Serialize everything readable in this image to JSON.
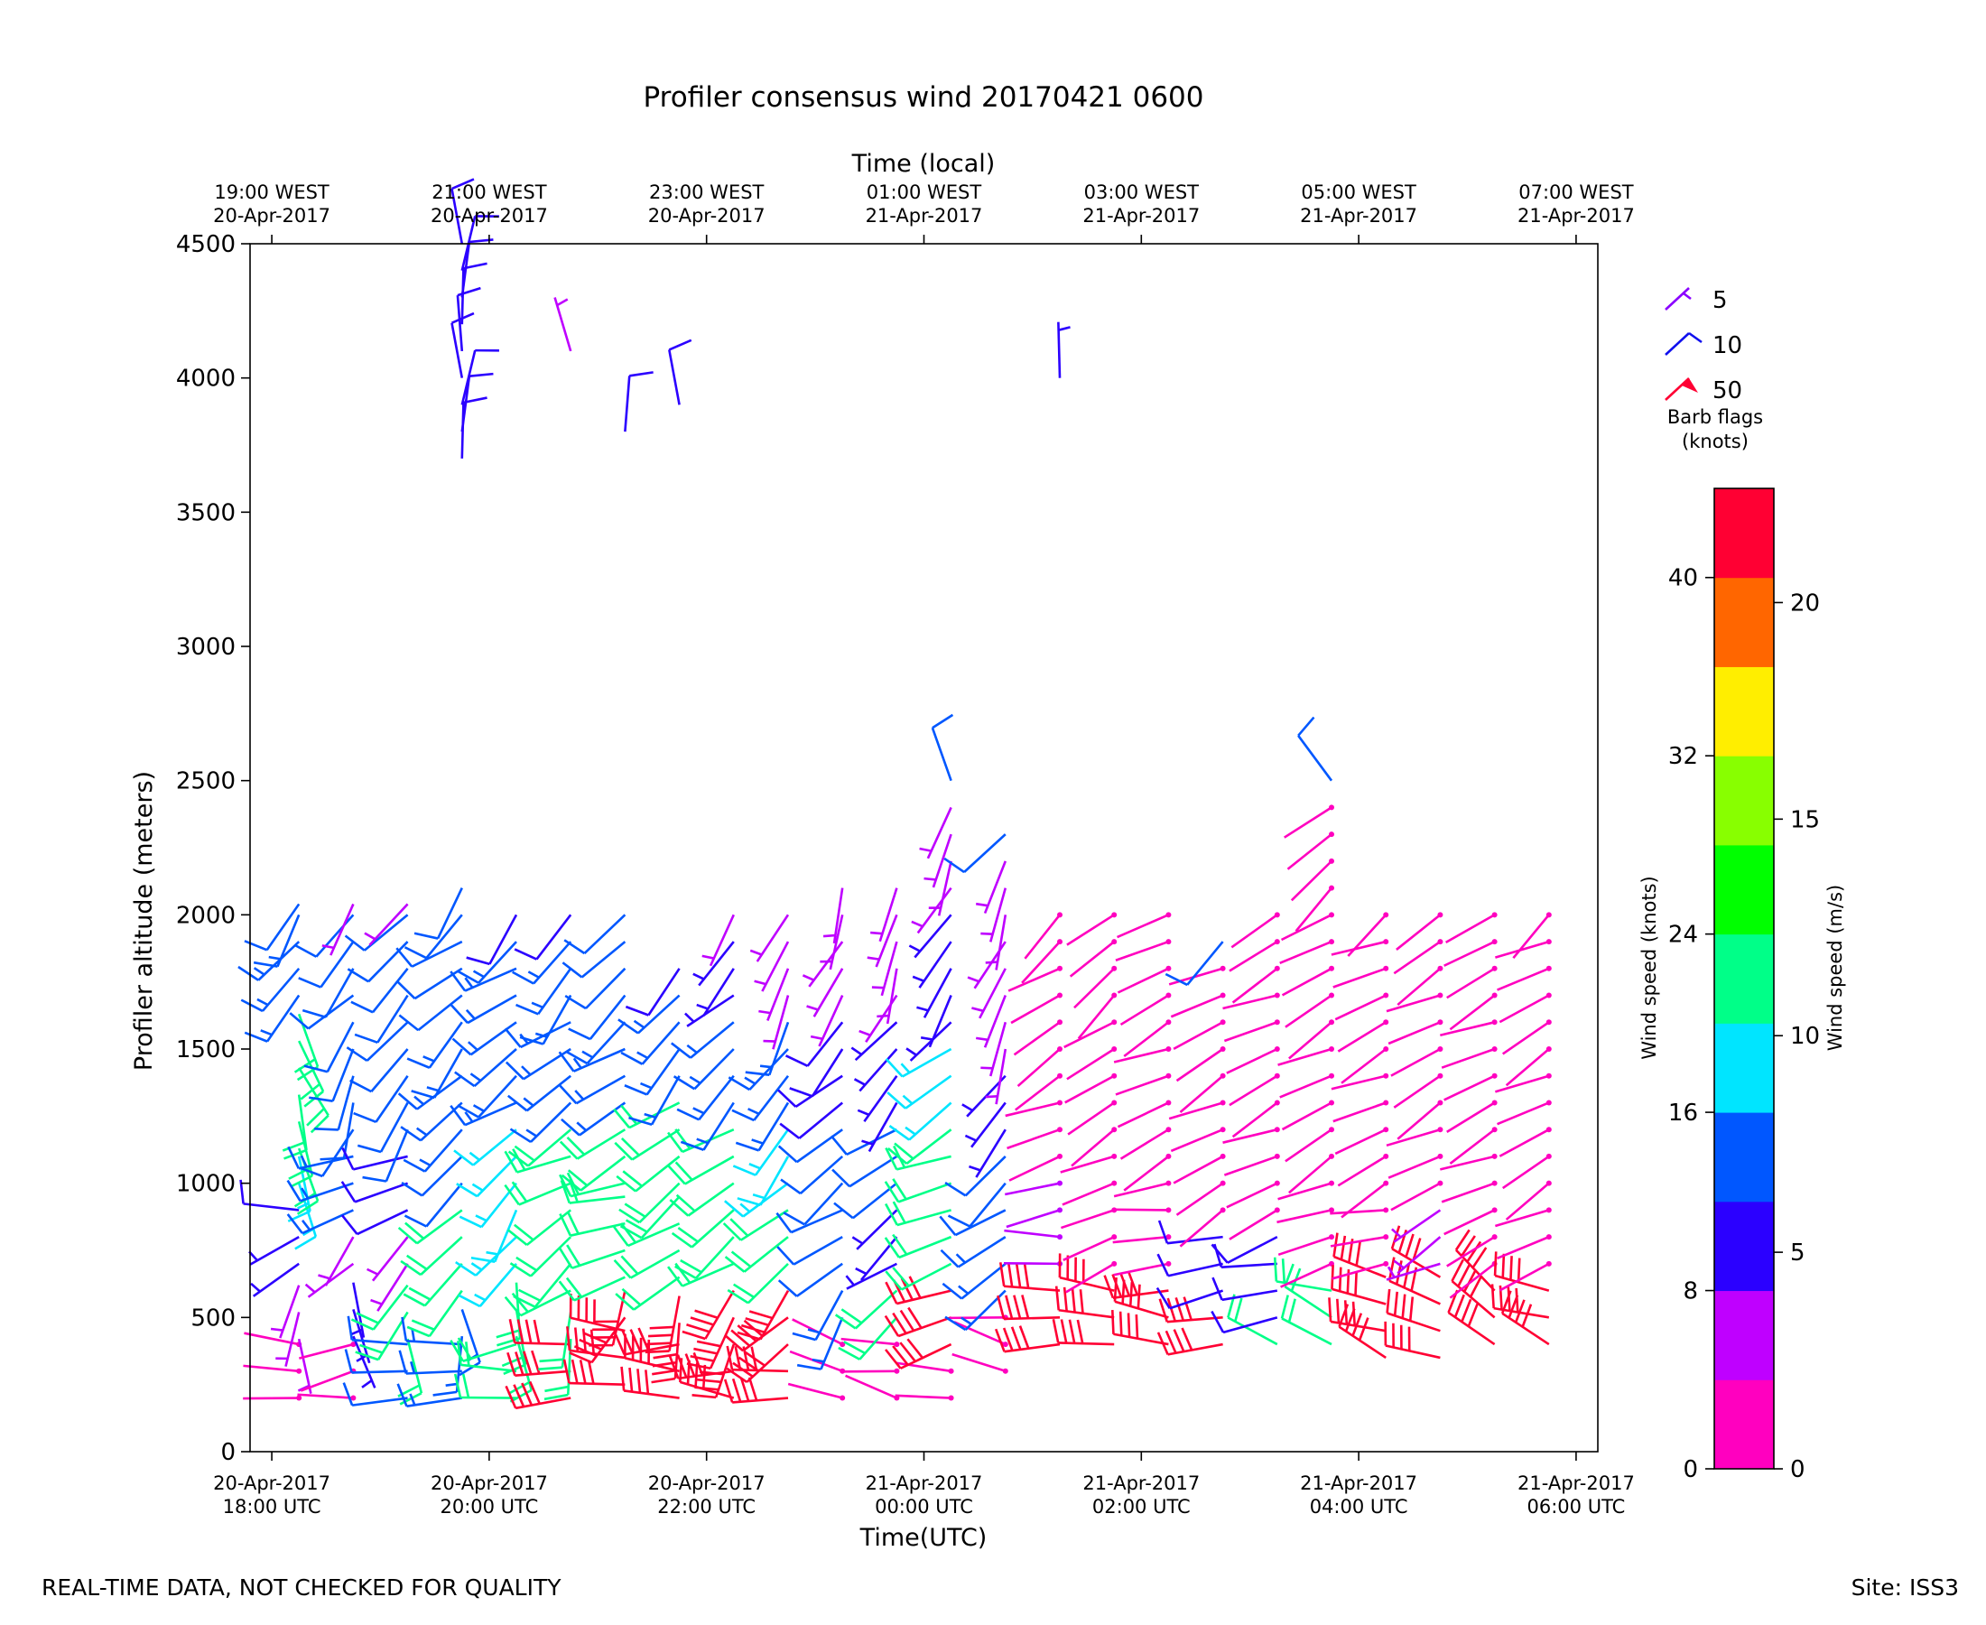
{
  "chart_data": {
    "type": "wind-barb-time-height",
    "title": "Profiler consensus wind 20170421 0600",
    "xlabel": "Time(UTC)",
    "x2label": "Time (local)",
    "ylabel": "Profiler altitude (meters)",
    "xlim_hours_utc": [
      -0.2,
      12.2
    ],
    "ylim": [
      0,
      4500
    ],
    "yticks": [
      0,
      500,
      1000,
      1500,
      2000,
      2500,
      3000,
      3500,
      4000,
      4500
    ],
    "yticklabels": [
      "0",
      "500",
      "1000",
      "1500",
      "2000",
      "2500",
      "3000",
      "3500",
      "4000",
      "4500"
    ],
    "xticks_utc": [
      {
        "line1": "20-Apr-2017",
        "line2": "18:00 UTC"
      },
      {
        "line1": "20-Apr-2017",
        "line2": "20:00 UTC"
      },
      {
        "line1": "20-Apr-2017",
        "line2": "22:00 UTC"
      },
      {
        "line1": "21-Apr-2017",
        "line2": "00:00 UTC"
      },
      {
        "line1": "21-Apr-2017",
        "line2": "02:00 UTC"
      },
      {
        "line1": "21-Apr-2017",
        "line2": "04:00 UTC"
      },
      {
        "line1": "21-Apr-2017",
        "line2": "06:00 UTC"
      }
    ],
    "xticks_local": [
      {
        "line1": "19:00 WEST",
        "line2": "20-Apr-2017"
      },
      {
        "line1": "21:00 WEST",
        "line2": "20-Apr-2017"
      },
      {
        "line1": "23:00 WEST",
        "line2": "20-Apr-2017"
      },
      {
        "line1": "01:00 WEST",
        "line2": "21-Apr-2017"
      },
      {
        "line1": "03:00 WEST",
        "line2": "21-Apr-2017"
      },
      {
        "line1": "05:00 WEST",
        "line2": "21-Apr-2017"
      },
      {
        "line1": "07:00 WEST",
        "line2": "21-Apr-2017"
      }
    ],
    "profile_hours_utc": [
      0,
      0.8,
      1.5,
      2.0,
      2.5,
      3.0,
      3.5,
      4.0,
      4.5,
      5.0,
      5.5,
      6.0,
      6.5,
      7.0,
      7.5,
      8.0,
      8.5,
      9.0,
      9.5,
      10.0,
      10.5,
      11.0,
      11.5,
      12.0
    ],
    "profiles": [
      {
        "t": 0.25,
        "segments": [
          [
            200,
            -95,
            3
          ],
          [
            420,
            150,
            6
          ],
          [
            520,
            200,
            7
          ],
          [
            700,
            230,
            9
          ],
          [
            900,
            260,
            11
          ],
          [
            1000,
            170,
            18
          ],
          [
            1130,
            160,
            20
          ],
          [
            1700,
            210,
            15
          ],
          [
            2040,
            220,
            13
          ]
        ]
      },
      {
        "t": 0.75,
        "segments": [
          [
            200,
            -100,
            3
          ],
          [
            430,
            160,
            8
          ],
          [
            700,
            220,
            6
          ],
          [
            900,
            250,
            15
          ],
          [
            1200,
            200,
            14
          ],
          [
            1700,
            220,
            12
          ],
          [
            2040,
            200,
            6
          ]
        ]
      },
      {
        "t": 1.25,
        "segments": [
          [
            200,
            -90,
            14
          ],
          [
            420,
            160,
            22
          ],
          [
            520,
            200,
            23
          ],
          [
            700,
            220,
            6
          ],
          [
            900,
            240,
            11
          ],
          [
            1200,
            210,
            13
          ],
          [
            1700,
            220,
            12
          ],
          [
            2040,
            210,
            7
          ]
        ]
      },
      {
        "t": 1.75,
        "segments": [
          [
            200,
            -100,
            15
          ],
          [
            430,
            170,
            15
          ],
          [
            600,
            220,
            22
          ],
          [
            1000,
            230,
            13
          ],
          [
            1200,
            220,
            15
          ],
          [
            1700,
            230,
            14
          ],
          [
            2100,
            210,
            12
          ],
          [
            3700,
            0,
            10
          ],
          [
            4500,
            0,
            10
          ]
        ]
      },
      {
        "t": 2.25,
        "segments": [
          [
            200,
            -100,
            22
          ],
          [
            430,
            170,
            22
          ],
          [
            700,
            210,
            16
          ],
          [
            1000,
            220,
            19
          ],
          [
            1300,
            230,
            15
          ],
          [
            1700,
            230,
            15
          ],
          [
            2000,
            210,
            10
          ]
        ]
      },
      {
        "t": 2.75,
        "segments": [
          [
            200,
            -90,
            40
          ],
          [
            420,
            180,
            23
          ],
          [
            600,
            230,
            22
          ],
          [
            1000,
            240,
            20
          ],
          [
            1300,
            230,
            15
          ],
          [
            1700,
            220,
            15
          ],
          [
            2000,
            210,
            10
          ],
          [
            4100,
            330,
            5
          ]
        ]
      },
      {
        "t": 3.25,
        "segments": [
          [
            250,
            -90,
            40
          ],
          [
            500,
            200,
            40
          ],
          [
            650,
            250,
            22
          ],
          [
            1000,
            240,
            21
          ],
          [
            1300,
            230,
            15
          ],
          [
            1700,
            220,
            14
          ],
          [
            2000,
            210,
            12
          ],
          [
            3800,
            0,
            10
          ]
        ]
      },
      {
        "t": 3.75,
        "segments": [
          [
            200,
            -90,
            40
          ],
          [
            480,
            190,
            40
          ],
          [
            650,
            230,
            23
          ],
          [
            1000,
            230,
            20
          ],
          [
            1400,
            220,
            15
          ],
          [
            1800,
            200,
            10
          ],
          [
            3900,
            0,
            10
          ]
        ]
      },
      {
        "t": 4.25,
        "segments": [
          [
            200,
            -90,
            40
          ],
          [
            400,
            200,
            40
          ],
          [
            700,
            230,
            22
          ],
          [
            1000,
            230,
            20
          ],
          [
            1300,
            220,
            15
          ],
          [
            1700,
            220,
            8
          ],
          [
            2000,
            200,
            5
          ]
        ]
      },
      {
        "t": 4.75,
        "segments": [
          [
            200,
            -90,
            40
          ],
          [
            400,
            220,
            40
          ],
          [
            700,
            230,
            21
          ],
          [
            1000,
            220,
            19
          ],
          [
            1300,
            210,
            15
          ],
          [
            1700,
            200,
            5
          ],
          [
            2000,
            200,
            5
          ]
        ]
      },
      {
        "t": 5.25,
        "segments": [
          [
            200,
            -80,
            3
          ],
          [
            500,
            210,
            15
          ],
          [
            700,
            230,
            12
          ],
          [
            1000,
            230,
            12
          ],
          [
            1300,
            220,
            10
          ],
          [
            1700,
            200,
            5
          ],
          [
            2100,
            190,
            5
          ]
        ]
      },
      {
        "t": 5.75,
        "segments": [
          [
            200,
            -80,
            3
          ],
          [
            500,
            220,
            23
          ],
          [
            700,
            230,
            8
          ],
          [
            1000,
            230,
            12
          ],
          [
            1300,
            220,
            8
          ],
          [
            1700,
            200,
            5
          ],
          [
            2100,
            190,
            5
          ]
        ]
      },
      {
        "t": 6.25,
        "segments": [
          [
            200,
            -80,
            3
          ],
          [
            400,
            240,
            40
          ],
          [
            700,
            250,
            22
          ],
          [
            1000,
            240,
            21
          ],
          [
            1300,
            230,
            18
          ],
          [
            1600,
            210,
            9
          ],
          [
            2100,
            200,
            6
          ],
          [
            2500,
            330,
            12
          ]
        ]
      },
      {
        "t": 6.75,
        "segments": [
          [
            300,
            -80,
            3
          ],
          [
            600,
            230,
            15
          ],
          [
            900,
            230,
            12
          ],
          [
            1200,
            210,
            9
          ],
          [
            1500,
            200,
            7
          ],
          [
            2300,
            220,
            12
          ]
        ]
      },
      {
        "t": 7.25,
        "segments": [
          [
            400,
            -90,
            40
          ],
          [
            700,
            260,
            4
          ],
          [
            1100,
            240,
            3
          ],
          [
            1500,
            230,
            3
          ],
          [
            2000,
            220,
            3
          ],
          [
            4000,
            0,
            8
          ]
        ]
      },
      {
        "t": 7.75,
        "segments": [
          [
            400,
            -90,
            40
          ],
          [
            700,
            250,
            3
          ],
          [
            1000,
            240,
            3
          ],
          [
            1500,
            230,
            3
          ],
          [
            2000,
            230,
            3
          ]
        ]
      },
      {
        "t": 8.25,
        "segments": [
          [
            400,
            -90,
            40
          ],
          [
            700,
            260,
            3
          ],
          [
            1000,
            240,
            3
          ],
          [
            1500,
            240,
            3
          ],
          [
            2000,
            230,
            3
          ]
        ]
      },
      {
        "t": 8.75,
        "segments": [
          [
            400,
            -90,
            40
          ],
          [
            600,
            250,
            10
          ],
          [
            900,
            240,
            3
          ],
          [
            1400,
            240,
            3
          ],
          [
            1900,
            230,
            12
          ]
        ]
      },
      {
        "t": 9.25,
        "segments": [
          [
            400,
            -60,
            21
          ],
          [
            500,
            250,
            10
          ],
          [
            900,
            240,
            3
          ],
          [
            1400,
            240,
            3
          ],
          [
            2000,
            230,
            3
          ]
        ]
      },
      {
        "t": 9.75,
        "segments": [
          [
            400,
            -70,
            22
          ],
          [
            700,
            250,
            3
          ],
          [
            1000,
            240,
            3
          ],
          [
            1500,
            240,
            3
          ],
          [
            2000,
            230,
            3
          ],
          [
            2500,
            310,
            14
          ]
        ]
      },
      {
        "t": 10.25,
        "segments": [
          [
            350,
            -70,
            40
          ],
          [
            700,
            250,
            3
          ],
          [
            1000,
            240,
            3
          ],
          [
            1500,
            240,
            3
          ],
          [
            2000,
            230,
            3
          ]
        ]
      },
      {
        "t": 10.75,
        "segments": [
          [
            350,
            -70,
            40
          ],
          [
            700,
            240,
            6
          ],
          [
            1000,
            240,
            3
          ],
          [
            1500,
            240,
            3
          ],
          [
            2000,
            230,
            3
          ]
        ]
      },
      {
        "t": 11.25,
        "segments": [
          [
            400,
            -60,
            40
          ],
          [
            700,
            240,
            3
          ],
          [
            1000,
            240,
            3
          ],
          [
            1500,
            240,
            3
          ],
          [
            2000,
            230,
            3
          ]
        ]
      },
      {
        "t": 11.75,
        "segments": [
          [
            400,
            -70,
            40
          ],
          [
            700,
            240,
            3
          ],
          [
            1000,
            240,
            3
          ],
          [
            1500,
            240,
            3
          ],
          [
            2000,
            230,
            3
          ]
        ]
      }
    ],
    "colorbar": {
      "label_knots": "Wind speed (knots)",
      "label_ms": "Wind speed (m/s)",
      "range_knots": [
        0,
        44
      ],
      "levels": [
        "#ff00bf",
        "#bf00ff",
        "#2b00ff",
        "#0057ff",
        "#00e5ff",
        "#00ff88",
        "#00ff00",
        "#88ff00",
        "#ffee00",
        "#ff6600",
        "#ff0033"
      ],
      "ticks_knots": [
        0,
        8,
        16,
        24,
        32,
        40
      ],
      "ticks_ms": [
        0,
        5,
        10,
        15,
        20
      ],
      "tick_labels_knots": [
        "0",
        "8",
        "16",
        "24",
        "32",
        "40"
      ],
      "tick_labels_ms": [
        "0",
        "5",
        "10",
        "15",
        "20"
      ]
    },
    "barb_legend": {
      "title_line1": "Barb flags",
      "title_line2": "(knots)",
      "items": [
        {
          "value": 5,
          "label": "5",
          "color": "#8a00ff"
        },
        {
          "value": 10,
          "label": "10",
          "color": "#1010ee"
        },
        {
          "value": 50,
          "label": "50",
          "color": "#ff0033"
        }
      ]
    }
  },
  "footer": {
    "left": "REAL-TIME DATA, NOT CHECKED FOR QUALITY",
    "right": "Site: ISS3"
  }
}
